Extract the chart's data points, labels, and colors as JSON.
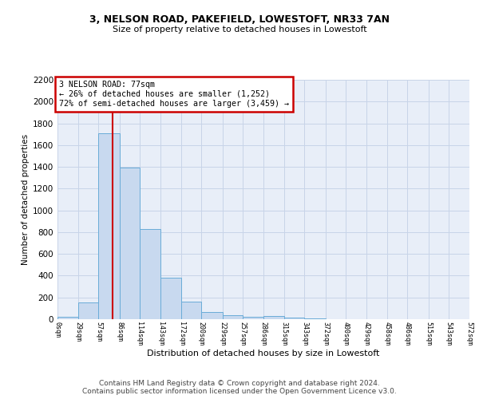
{
  "title": "3, NELSON ROAD, PAKEFIELD, LOWESTOFT, NR33 7AN",
  "subtitle": "Size of property relative to detached houses in Lowestoft",
  "xlabel": "Distribution of detached houses by size in Lowestoft",
  "ylabel": "Number of detached properties",
  "bar_values": [
    20,
    155,
    1710,
    1390,
    830,
    380,
    165,
    65,
    38,
    25,
    28,
    15,
    5,
    0,
    0,
    0,
    0,
    0,
    0,
    0
  ],
  "bin_edges": [
    0,
    29,
    57,
    86,
    114,
    143,
    172,
    200,
    229,
    257,
    286,
    315,
    343,
    372,
    400,
    429,
    458,
    486,
    515,
    543,
    572
  ],
  "tick_labels": [
    "0sqm",
    "29sqm",
    "57sqm",
    "86sqm",
    "114sqm",
    "143sqm",
    "172sqm",
    "200sqm",
    "229sqm",
    "257sqm",
    "286sqm",
    "315sqm",
    "343sqm",
    "372sqm",
    "400sqm",
    "429sqm",
    "458sqm",
    "486sqm",
    "515sqm",
    "543sqm",
    "572sqm"
  ],
  "property_size": 77,
  "property_line_color": "#cc0000",
  "bar_facecolor": "#c8d9ef",
  "bar_edgecolor": "#6aacd8",
  "annotation_line1": "3 NELSON ROAD: 77sqm",
  "annotation_line2": "← 26% of detached houses are smaller (1,252)",
  "annotation_line3": "72% of semi-detached houses are larger (3,459) →",
  "annotation_box_color": "#cc0000",
  "ylim": [
    0,
    2200
  ],
  "yticks": [
    0,
    200,
    400,
    600,
    800,
    1000,
    1200,
    1400,
    1600,
    1800,
    2000,
    2200
  ],
  "grid_color": "#c8d4e8",
  "background_color": "#e8eef8",
  "footer_text": "Contains HM Land Registry data © Crown copyright and database right 2024.\nContains public sector information licensed under the Open Government Licence v3.0.",
  "fig_width": 6.0,
  "fig_height": 5.0,
  "title_fontsize": 9,
  "subtitle_fontsize": 8,
  "footer_fontsize": 6.5
}
